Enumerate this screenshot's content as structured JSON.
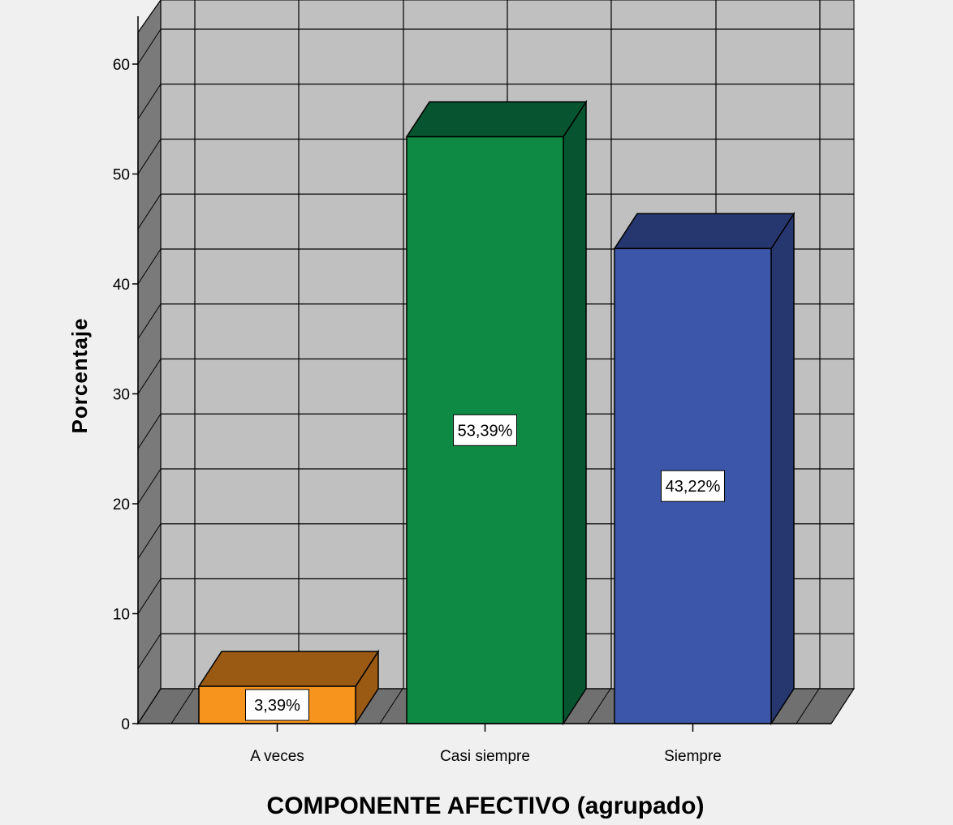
{
  "chart_data": {
    "type": "bar",
    "categories": [
      "A veces",
      "Casi siempre",
      "Siempre"
    ],
    "values": [
      3.39,
      53.39,
      43.22
    ],
    "data_labels": [
      "3,39%",
      "53,39%",
      "43,22%"
    ],
    "xlabel": "COMPONENTE AFECTIVO (agrupado)",
    "ylabel": "Porcentaje",
    "ylim": [
      0,
      60
    ],
    "yticks": [
      0,
      10,
      20,
      30,
      40,
      50,
      60
    ],
    "grid": true,
    "style": "3d",
    "colors": {
      "bar_front": [
        "#f7941d",
        "#0e8a45",
        "#3c57a9"
      ],
      "bar_top": [
        "#9a5a13",
        "#075530",
        "#263770"
      ],
      "bar_side": [
        "#9a5a13",
        "#075530",
        "#263770"
      ],
      "plot_background": "#c0c0c0",
      "floor": "#707070",
      "side_wall": "#7a7a7a"
    }
  }
}
